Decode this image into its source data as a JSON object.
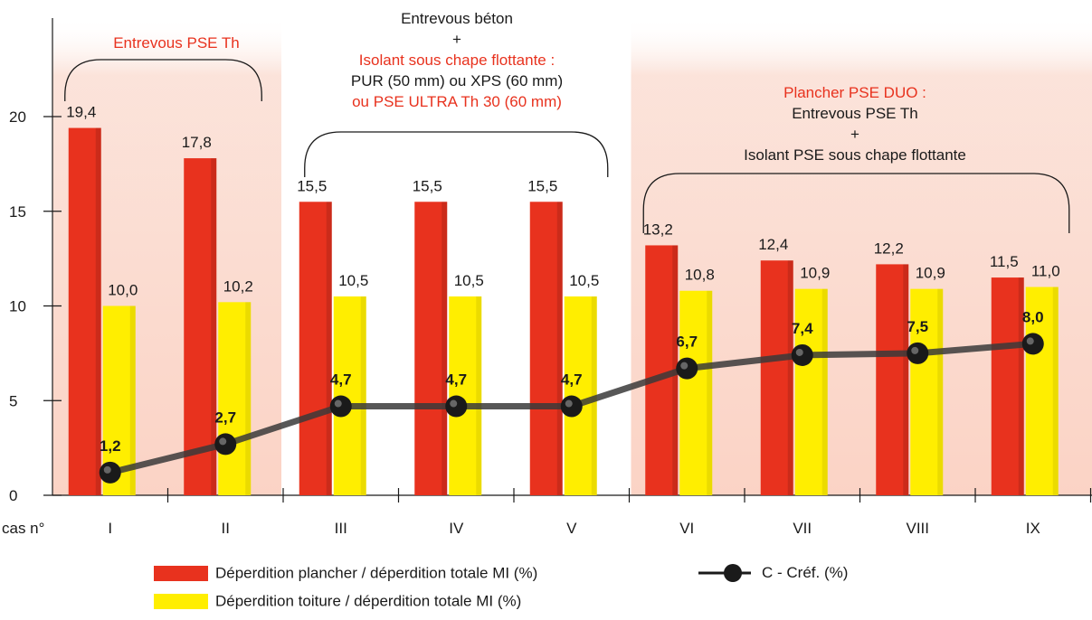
{
  "chart_data": {
    "type": "bar",
    "x_axis_prefix": "cas n°",
    "categories": [
      "I",
      "II",
      "III",
      "IV",
      "V",
      "VI",
      "VII",
      "VIII",
      "IX"
    ],
    "ylim": [
      0,
      25
    ],
    "yticks": [
      0,
      5,
      10,
      15,
      20
    ],
    "series": [
      {
        "name": "Déperdition plancher / déperdition totale MI (%)",
        "type": "bar",
        "color": "#e8321e",
        "values": [
          19.4,
          17.8,
          15.5,
          15.5,
          15.5,
          13.2,
          12.4,
          12.2,
          11.5
        ],
        "labels": [
          "19,4",
          "17,8",
          "15,5",
          "15,5",
          "15,5",
          "13,2",
          "12,4",
          "12,2",
          "11,5"
        ]
      },
      {
        "name": "Déperdition toiture / déperdition totale MI (%)",
        "type": "bar",
        "color": "#ffee00",
        "values": [
          10.0,
          10.2,
          10.5,
          10.5,
          10.5,
          10.8,
          10.9,
          10.9,
          11.0
        ],
        "labels": [
          "10,0",
          "10,2",
          "10,5",
          "10,5",
          "10,5",
          "10,8",
          "10,9",
          "10,9",
          "11,0"
        ]
      },
      {
        "name": "C - Créf. (%)",
        "type": "line",
        "color": "#1a1a1a",
        "values": [
          1.2,
          2.7,
          4.7,
          4.7,
          4.7,
          6.7,
          7.4,
          7.5,
          8.0
        ],
        "labels": [
          "1,2",
          "2,7",
          "4,7",
          "4,7",
          "4,7",
          "6,7",
          "7,4",
          "7,5",
          "8,0"
        ]
      }
    ],
    "groups": [
      {
        "categories": [
          "I",
          "II"
        ],
        "shaded": true
      },
      {
        "categories": [
          "III",
          "IV",
          "V"
        ],
        "shaded": false
      },
      {
        "categories": [
          "VI",
          "VII",
          "VIII",
          "IX"
        ],
        "shaded": true
      }
    ],
    "grid": false,
    "legend_position": "bottom"
  },
  "annotations": {
    "group1": {
      "line1": "Entrevous PSE Th"
    },
    "group2": {
      "line1": "Entrevous béton",
      "line2": "+",
      "line3": "Isolant sous chape flottante :",
      "line4": "PUR (50 mm) ou XPS (60 mm)",
      "line5": "ou PSE ULTRA Th 30 (60 mm)"
    },
    "group3": {
      "line1": "Plancher PSE DUO :",
      "line2": "Entrevous PSE Th",
      "line3": "+",
      "line4": "Isolant PSE sous chape flottante"
    }
  },
  "colors": {
    "floor": "#e8321e",
    "roof": "#ffee00",
    "line": "#1a1a1a",
    "shade": "#fbd9cf",
    "annotation_red": "#e8321e"
  }
}
